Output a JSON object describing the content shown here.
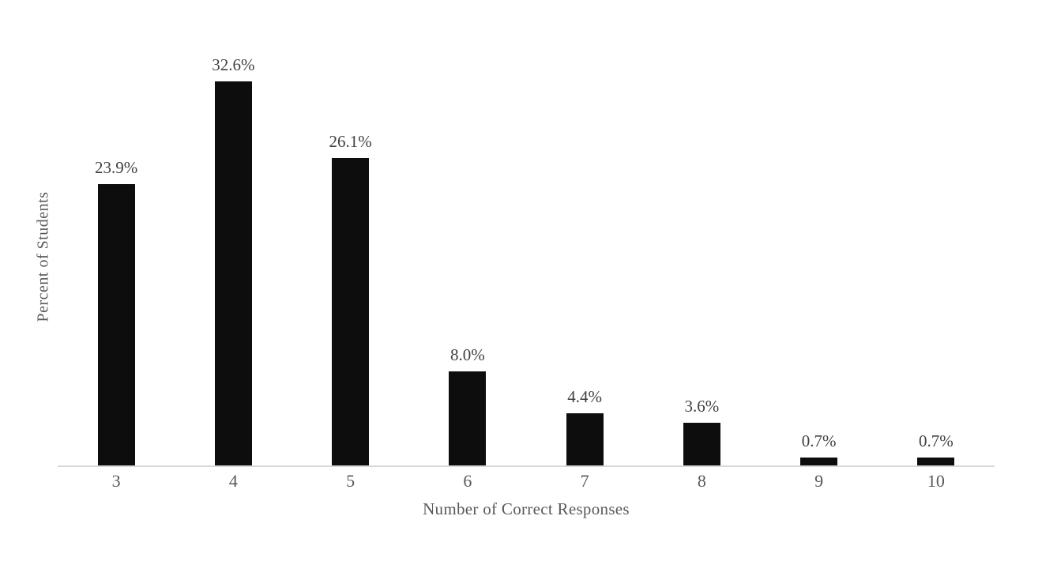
{
  "chart_data": {
    "type": "bar",
    "title": "",
    "categories": [
      "3",
      "4",
      "5",
      "6",
      "7",
      "8",
      "9",
      "10"
    ],
    "values": [
      23.9,
      32.6,
      26.1,
      8.0,
      4.4,
      3.6,
      0.7,
      0.7
    ],
    "data_labels": [
      "23.9%",
      "32.6%",
      "26.1%",
      "8.0%",
      "4.4%",
      "3.6%",
      "0.7%",
      "0.7%"
    ],
    "xlabel": "Number of Correct Responses",
    "ylabel": "Percent of Students",
    "ylim": [
      0,
      35.5
    ],
    "grid": false,
    "legend": false,
    "bar_color": "#0d0d0d",
    "axis_line_color": "#d9d9d9",
    "data_label_color": "#404040",
    "axis_text_color": "#595959"
  }
}
